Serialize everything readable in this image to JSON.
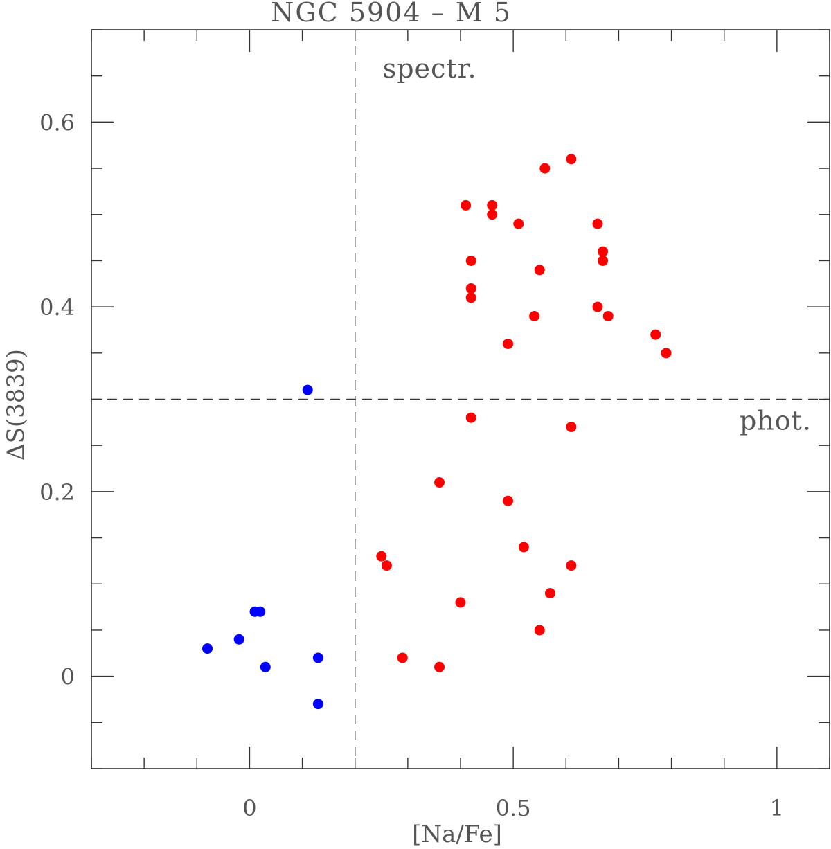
{
  "chart_data": {
    "type": "scatter",
    "title": "NGC 5904 – M 5",
    "xlabel": "[Na/Fe]",
    "ylabel": "ΔS(3839)",
    "xlim": [
      -0.3,
      1.1
    ],
    "ylim": [
      -0.1,
      0.7
    ],
    "x_major_ticks": [
      0,
      0.5,
      1
    ],
    "x_tick_labels": [
      "0",
      "0.5",
      "1"
    ],
    "x_minor_step": 0.1,
    "y_major_ticks": [
      0,
      0.2,
      0.4,
      0.6
    ],
    "y_tick_labels": [
      "0",
      "0.2",
      "0.4",
      "0.6"
    ],
    "y_minor_step": 0.05,
    "grid": false,
    "reference_lines": {
      "vertical_x": 0.2,
      "horizontal_y": 0.3
    },
    "annotations": {
      "spectr": "spectr.",
      "phot": "phot."
    },
    "series": [
      {
        "color": "#0000ff",
        "points": [
          {
            "x": -0.08,
            "y": 0.03
          },
          {
            "x": -0.02,
            "y": 0.04
          },
          {
            "x": 0.01,
            "y": 0.07
          },
          {
            "x": 0.02,
            "y": 0.07
          },
          {
            "x": 0.03,
            "y": 0.01
          },
          {
            "x": 0.11,
            "y": 0.31
          },
          {
            "x": 0.13,
            "y": 0.02
          },
          {
            "x": 0.13,
            "y": -0.03
          }
        ]
      },
      {
        "color": "#ff0000",
        "points": [
          {
            "x": 0.25,
            "y": 0.13
          },
          {
            "x": 0.26,
            "y": 0.12
          },
          {
            "x": 0.29,
            "y": 0.02
          },
          {
            "x": 0.36,
            "y": 0.21
          },
          {
            "x": 0.36,
            "y": 0.01
          },
          {
            "x": 0.4,
            "y": 0.08
          },
          {
            "x": 0.41,
            "y": 0.51
          },
          {
            "x": 0.42,
            "y": 0.45
          },
          {
            "x": 0.42,
            "y": 0.42
          },
          {
            "x": 0.42,
            "y": 0.41
          },
          {
            "x": 0.42,
            "y": 0.28
          },
          {
            "x": 0.46,
            "y": 0.51
          },
          {
            "x": 0.46,
            "y": 0.5
          },
          {
            "x": 0.49,
            "y": 0.36
          },
          {
            "x": 0.49,
            "y": 0.19
          },
          {
            "x": 0.51,
            "y": 0.49
          },
          {
            "x": 0.52,
            "y": 0.14
          },
          {
            "x": 0.54,
            "y": 0.39
          },
          {
            "x": 0.55,
            "y": 0.44
          },
          {
            "x": 0.55,
            "y": 0.05
          },
          {
            "x": 0.56,
            "y": 0.55
          },
          {
            "x": 0.57,
            "y": 0.09
          },
          {
            "x": 0.61,
            "y": 0.56
          },
          {
            "x": 0.61,
            "y": 0.27
          },
          {
            "x": 0.61,
            "y": 0.12
          },
          {
            "x": 0.66,
            "y": 0.49
          },
          {
            "x": 0.66,
            "y": 0.4
          },
          {
            "x": 0.67,
            "y": 0.46
          },
          {
            "x": 0.67,
            "y": 0.45
          },
          {
            "x": 0.68,
            "y": 0.39
          },
          {
            "x": 0.77,
            "y": 0.37
          },
          {
            "x": 0.79,
            "y": 0.35
          }
        ]
      }
    ]
  }
}
